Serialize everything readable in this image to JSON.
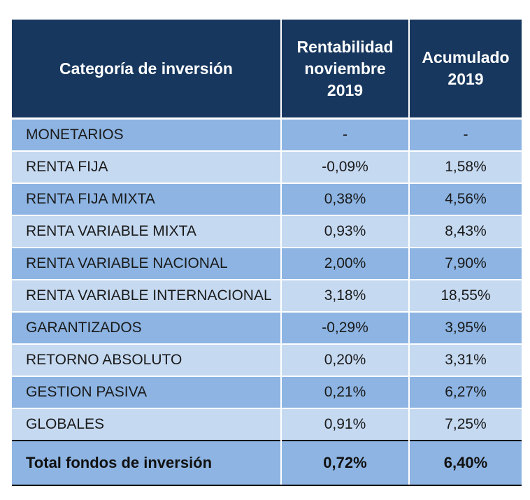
{
  "table": {
    "headers": {
      "category": "Categoría de inversión",
      "month_lines": [
        "Rentabilidad",
        "noviembre",
        "2019"
      ],
      "ytd_lines": [
        "Acumulado",
        "2019"
      ]
    },
    "rows": [
      {
        "category": "MONETARIOS",
        "month": "-",
        "ytd": "-"
      },
      {
        "category": "RENTA FIJA",
        "month": "-0,09%",
        "ytd": "1,58%"
      },
      {
        "category": "RENTA FIJA MIXTA",
        "month": "0,38%",
        "ytd": "4,56%"
      },
      {
        "category": "RENTA VARIABLE MIXTA",
        "month": "0,93%",
        "ytd": "8,43%"
      },
      {
        "category": "RENTA VARIABLE NACIONAL",
        "month": "2,00%",
        "ytd": "7,90%"
      },
      {
        "category": "RENTA VARIABLE INTERNACIONAL",
        "month": "3,18%",
        "ytd": "18,55%"
      },
      {
        "category": "GARANTIZADOS",
        "month": "-0,29%",
        "ytd": "3,95%"
      },
      {
        "category": "RETORNO ABSOLUTO",
        "month": "0,20%",
        "ytd": "3,31%"
      },
      {
        "category": "GESTION PASIVA",
        "month": "0,21%",
        "ytd": "6,27%"
      },
      {
        "category": "GLOBALES",
        "month": "0,91%",
        "ytd": "7,25%"
      }
    ],
    "total": {
      "category": "Total fondos de inversión",
      "month": "0,72%",
      "ytd": "6,40%"
    }
  },
  "colors": {
    "header_bg": "#17375e",
    "header_text": "#ffffff",
    "row_dark": "#8db4e2",
    "row_light": "#c5d9f1"
  }
}
